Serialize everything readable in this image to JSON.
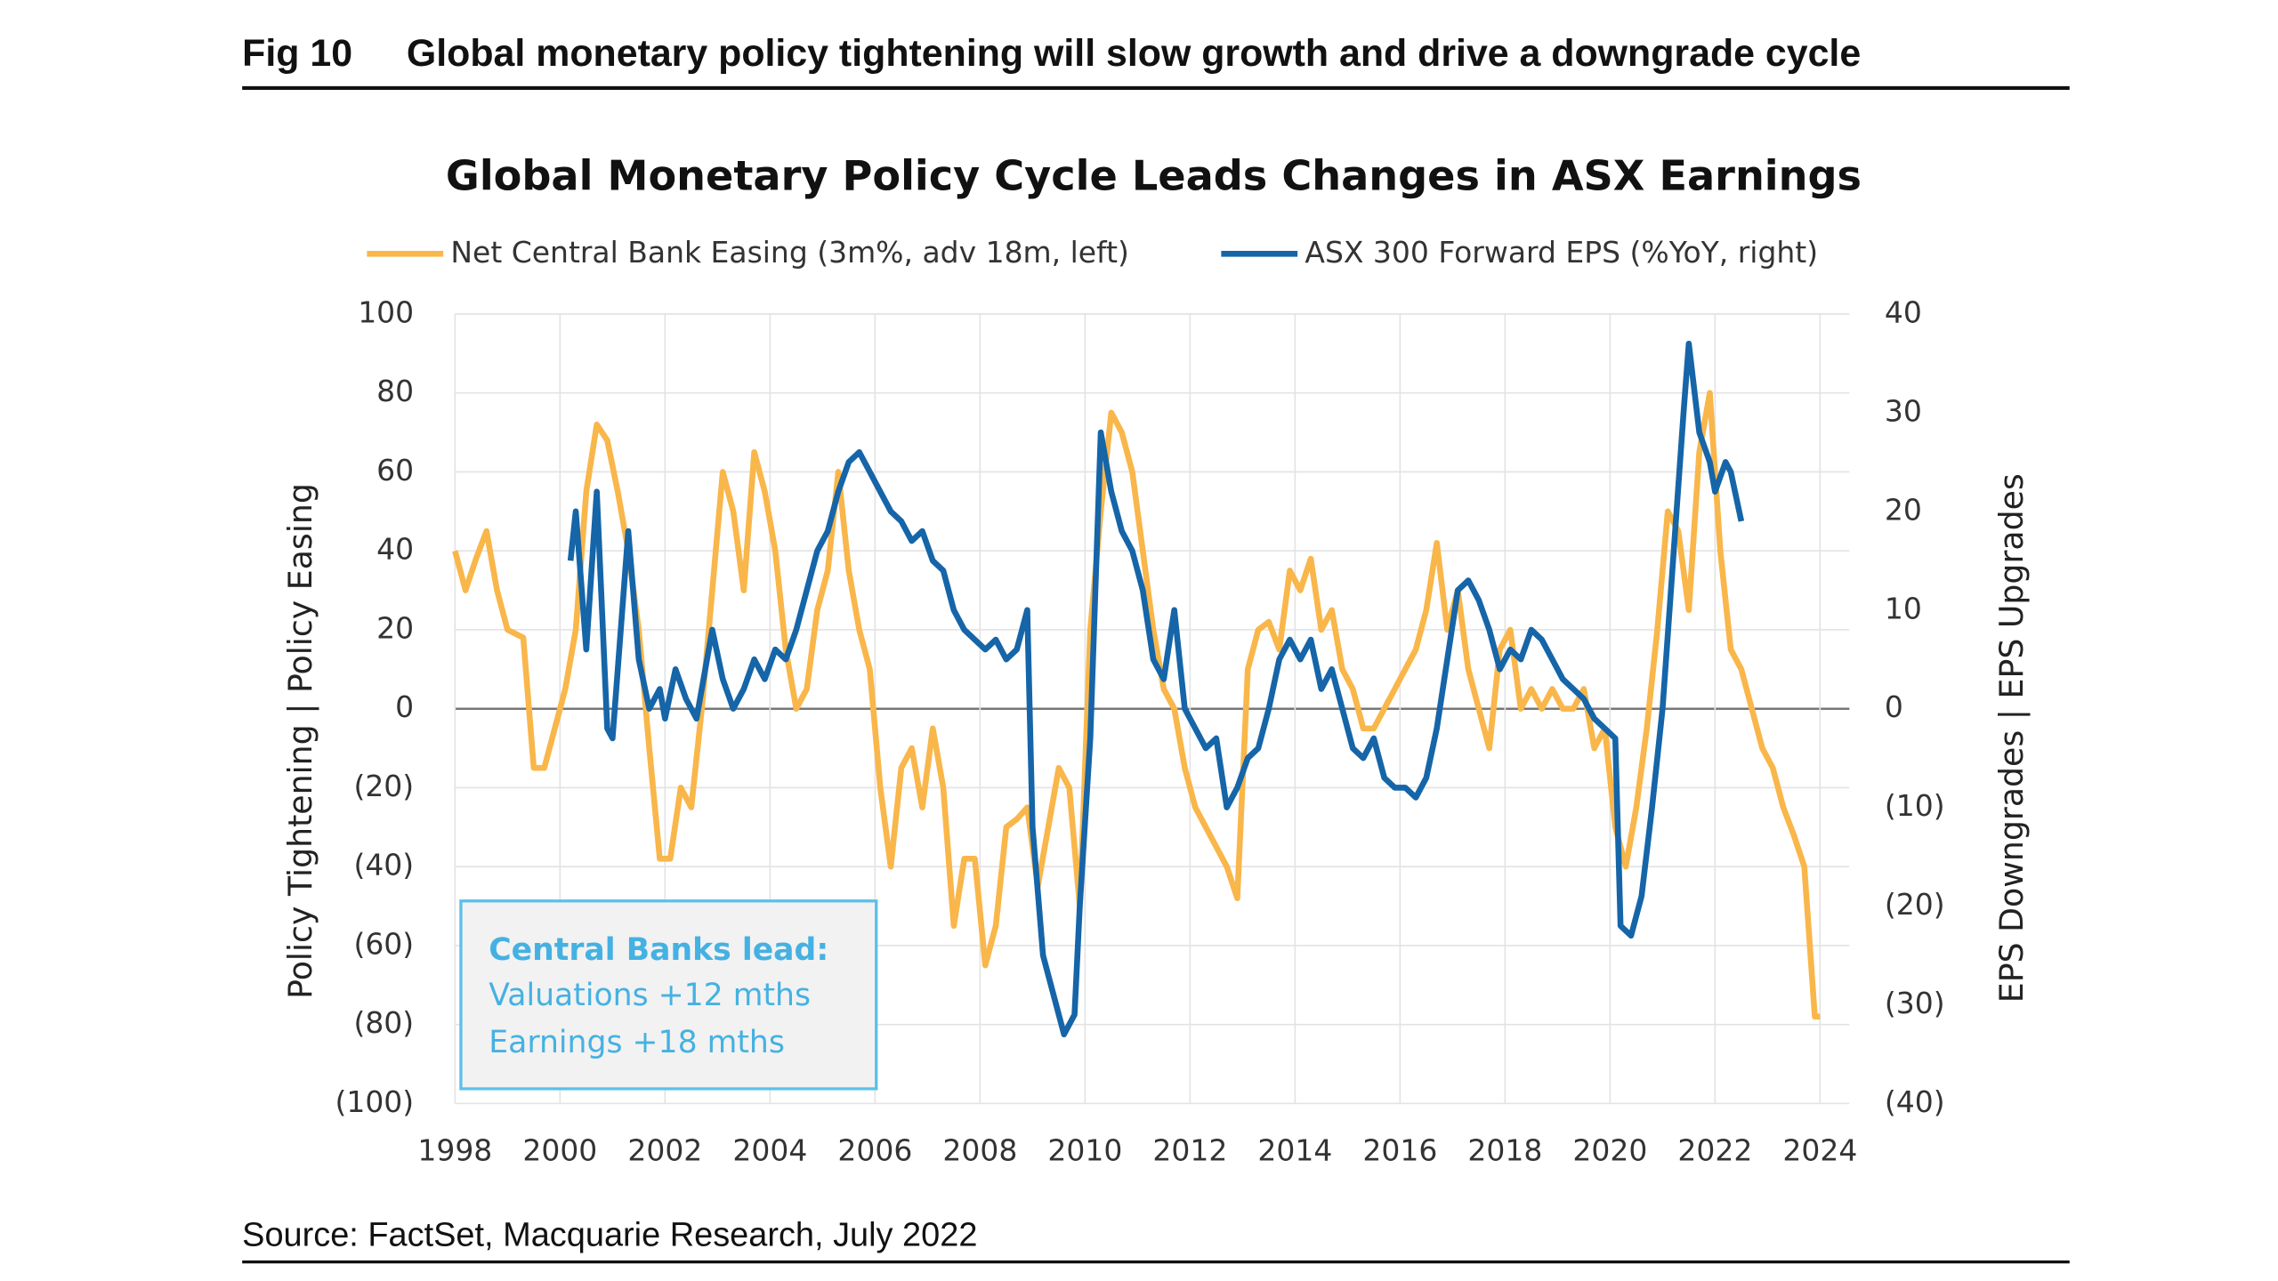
{
  "figure_label": "Fig 10",
  "figure_title": "Global monetary policy tightening will slow growth and drive a downgrade cycle",
  "source": "Source: FactSet, Macquarie Research, July 2022",
  "chart_data": {
    "type": "line",
    "title": "Global Monetary Policy Cycle Leads Changes in ASX Earnings",
    "y_label": "Policy Tightening  |  Policy Easing",
    "y2_label": "EPS Downgrades  |  EPS Upgrades",
    "annotation": [
      "Central Banks lead:",
      "Valuations +12 mths",
      "Earnings +18 mths"
    ],
    "xlim": [
      1998,
      2024
    ],
    "xticks": [
      1998,
      2000,
      2002,
      2004,
      2006,
      2008,
      2010,
      2012,
      2014,
      2016,
      2018,
      2020,
      2022,
      2024
    ],
    "ylim": [
      -100,
      100
    ],
    "yticks": [
      100,
      80,
      60,
      40,
      20,
      0,
      {
        "value": -20,
        "label": "(20)"
      },
      {
        "value": -40,
        "label": "(40)"
      },
      {
        "value": -60,
        "label": "(60)"
      },
      {
        "value": -80,
        "label": "(80)"
      },
      {
        "value": -100,
        "label": "(100)"
      }
    ],
    "y2lim": [
      -40,
      40
    ],
    "y2ticks": [
      40,
      30,
      20,
      10,
      0,
      {
        "value": -10,
        "label": "(10)"
      },
      {
        "value": -20,
        "label": "(20)"
      },
      {
        "value": -30,
        "label": "(30)"
      },
      {
        "value": -40,
        "label": "(40)"
      }
    ],
    "grid": true,
    "series": [
      {
        "name": "Net Central Bank Easing (3m%, adv 18m, left)",
        "color": "#f9b64a",
        "axis": "y",
        "x": [
          1998.0,
          1998.2,
          1998.4,
          1998.6,
          1998.8,
          1999.0,
          1999.3,
          1999.5,
          1999.7,
          1999.9,
          2000.1,
          2000.3,
          2000.5,
          2000.7,
          2000.9,
          2001.1,
          2001.3,
          2001.5,
          2001.7,
          2001.9,
          2002.1,
          2002.3,
          2002.5,
          2002.7,
          2002.9,
          2003.1,
          2003.3,
          2003.5,
          2003.7,
          2003.9,
          2004.1,
          2004.3,
          2004.5,
          2004.7,
          2004.9,
          2005.1,
          2005.3,
          2005.5,
          2005.7,
          2005.9,
          2006.1,
          2006.3,
          2006.5,
          2006.7,
          2006.9,
          2007.1,
          2007.3,
          2007.5,
          2007.7,
          2007.9,
          2008.1,
          2008.3,
          2008.5,
          2008.7,
          2008.9,
          2009.1,
          2009.3,
          2009.5,
          2009.7,
          2009.9,
          2010.1,
          2010.3,
          2010.5,
          2010.7,
          2010.9,
          2011.1,
          2011.3,
          2011.5,
          2011.7,
          2011.9,
          2012.1,
          2012.3,
          2012.5,
          2012.7,
          2012.9,
          2013.1,
          2013.3,
          2013.5,
          2013.7,
          2013.9,
          2014.1,
          2014.3,
          2014.5,
          2014.7,
          2014.9,
          2015.1,
          2015.3,
          2015.5,
          2015.7,
          2015.9,
          2016.1,
          2016.3,
          2016.5,
          2016.7,
          2016.9,
          2017.1,
          2017.3,
          2017.5,
          2017.7,
          2017.9,
          2018.1,
          2018.3,
          2018.5,
          2018.7,
          2018.9,
          2019.1,
          2019.3,
          2019.5,
          2019.7,
          2019.9,
          2020.1,
          2020.3,
          2020.5,
          2020.7,
          2020.9,
          2021.1,
          2021.3,
          2021.5,
          2021.7,
          2021.9,
          2022.1,
          2022.3,
          2022.5,
          2022.7,
          2022.9,
          2023.1,
          2023.3,
          2023.5,
          2023.7,
          2023.9,
          2024.0
        ],
        "values": [
          40,
          30,
          38,
          45,
          30,
          20,
          18,
          -15,
          -15,
          -5,
          5,
          20,
          55,
          72,
          68,
          55,
          40,
          20,
          -10,
          -38,
          -38,
          -20,
          -25,
          0,
          30,
          60,
          50,
          30,
          65,
          55,
          40,
          15,
          0,
          5,
          25,
          35,
          60,
          35,
          20,
          10,
          -20,
          -40,
          -15,
          -10,
          -25,
          -5,
          -20,
          -55,
          -38,
          -38,
          -65,
          -55,
          -30,
          -28,
          -25,
          -45,
          -30,
          -15,
          -20,
          -50,
          20,
          50,
          75,
          70,
          60,
          40,
          20,
          5,
          0,
          -15,
          -25,
          -30,
          -35,
          -40,
          -48,
          10,
          20,
          22,
          15,
          35,
          30,
          38,
          20,
          25,
          10,
          5,
          -5,
          -5,
          0,
          5,
          10,
          15,
          25,
          42,
          20,
          30,
          10,
          0,
          -10,
          15,
          20,
          0,
          5,
          0,
          5,
          0,
          0,
          5,
          -10,
          -5,
          -30,
          -40,
          -25,
          -5,
          20,
          50,
          45,
          25,
          65,
          80,
          40,
          15,
          10,
          0,
          -10,
          -15,
          -25,
          -32,
          -40,
          -78,
          -78
        ]
      },
      {
        "name": "ASX 300 Forward EPS (%YoY, right)",
        "color": "#1565a8",
        "axis": "y2",
        "x": [
          2000.2,
          2000.3,
          2000.5,
          2000.7,
          2000.8,
          2000.9,
          2001.0,
          2001.3,
          2001.5,
          2001.7,
          2001.9,
          2002.0,
          2002.2,
          2002.4,
          2002.6,
          2002.8,
          2002.9,
          2003.1,
          2003.3,
          2003.5,
          2003.7,
          2003.9,
          2004.1,
          2004.3,
          2004.5,
          2004.7,
          2004.9,
          2005.1,
          2005.3,
          2005.5,
          2005.7,
          2005.9,
          2006.1,
          2006.3,
          2006.5,
          2006.7,
          2006.9,
          2007.1,
          2007.3,
          2007.5,
          2007.7,
          2007.9,
          2008.1,
          2008.3,
          2008.5,
          2008.7,
          2008.9,
          2009.0,
          2009.2,
          2009.4,
          2009.6,
          2009.8,
          2009.9,
          2010.1,
          2010.3,
          2010.5,
          2010.7,
          2010.9,
          2011.1,
          2011.3,
          2011.5,
          2011.7,
          2011.9,
          2012.1,
          2012.3,
          2012.5,
          2012.7,
          2012.9,
          2013.1,
          2013.3,
          2013.5,
          2013.7,
          2013.9,
          2014.1,
          2014.3,
          2014.5,
          2014.7,
          2014.9,
          2015.1,
          2015.3,
          2015.5,
          2015.7,
          2015.9,
          2016.1,
          2016.3,
          2016.5,
          2016.7,
          2016.9,
          2017.1,
          2017.3,
          2017.5,
          2017.7,
          2017.9,
          2018.1,
          2018.3,
          2018.5,
          2018.7,
          2018.9,
          2019.1,
          2019.3,
          2019.5,
          2019.7,
          2019.9,
          2020.1,
          2020.2,
          2020.4,
          2020.6,
          2020.8,
          2021.0,
          2021.2,
          2021.4,
          2021.5,
          2021.7,
          2021.9,
          2022.0,
          2022.2,
          2022.3,
          2022.5
        ],
        "values": [
          15,
          20,
          6,
          22,
          10,
          -2,
          -3,
          18,
          5,
          0,
          2,
          -1,
          4,
          1,
          -1,
          5,
          8,
          3,
          0,
          2,
          5,
          3,
          6,
          5,
          8,
          12,
          16,
          18,
          22,
          25,
          26,
          24,
          22,
          20,
          19,
          17,
          18,
          15,
          14,
          10,
          8,
          7,
          6,
          7,
          5,
          6,
          10,
          -12,
          -25,
          -29,
          -33,
          -31,
          -20,
          -3,
          28,
          22,
          18,
          16,
          12,
          5,
          3,
          10,
          0,
          -2,
          -4,
          -3,
          -10,
          -8,
          -5,
          -4,
          0,
          5,
          7,
          5,
          7,
          2,
          4,
          0,
          -4,
          -5,
          -3,
          -7,
          -8,
          -8,
          -9,
          -7,
          -2,
          5,
          12,
          13,
          11,
          8,
          4,
          6,
          5,
          8,
          7,
          5,
          3,
          2,
          1,
          -1,
          -2,
          -3,
          -22,
          -23,
          -19,
          -10,
          0,
          15,
          30,
          37,
          28,
          25,
          22,
          25,
          24,
          19
        ]
      }
    ]
  }
}
